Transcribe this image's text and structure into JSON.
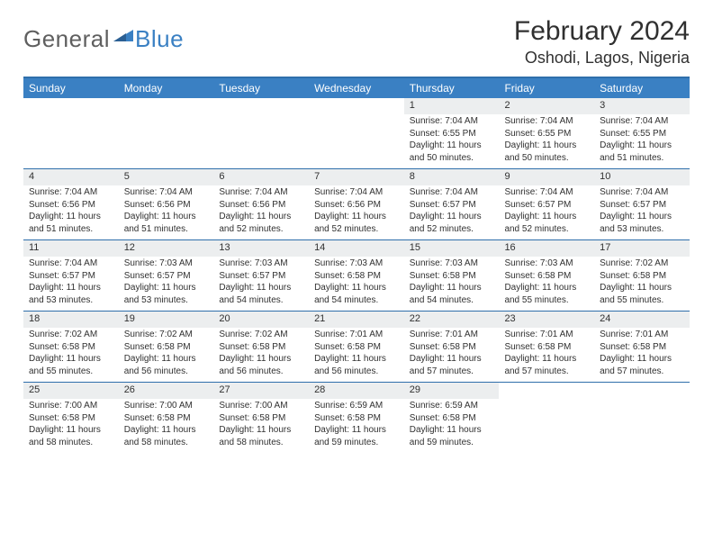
{
  "colors": {
    "header_bg": "#3a80c3",
    "header_text": "#ffffff",
    "border": "#2f6fab",
    "daynum_bg": "#eceeef",
    "text": "#303030",
    "logo_gray": "#5f5f5f",
    "logo_blue": "#3a80c3"
  },
  "logo": {
    "part1": "General",
    "part2": "Blue"
  },
  "title": "February 2024",
  "subtitle": "Oshodi, Lagos, Nigeria",
  "day_headers": [
    "Sunday",
    "Monday",
    "Tuesday",
    "Wednesday",
    "Thursday",
    "Friday",
    "Saturday"
  ],
  "weeks": [
    [
      {
        "n": "",
        "sr": "",
        "ss": "",
        "dl": ""
      },
      {
        "n": "",
        "sr": "",
        "ss": "",
        "dl": ""
      },
      {
        "n": "",
        "sr": "",
        "ss": "",
        "dl": ""
      },
      {
        "n": "",
        "sr": "",
        "ss": "",
        "dl": ""
      },
      {
        "n": "1",
        "sr": "Sunrise: 7:04 AM",
        "ss": "Sunset: 6:55 PM",
        "dl": "Daylight: 11 hours and 50 minutes."
      },
      {
        "n": "2",
        "sr": "Sunrise: 7:04 AM",
        "ss": "Sunset: 6:55 PM",
        "dl": "Daylight: 11 hours and 50 minutes."
      },
      {
        "n": "3",
        "sr": "Sunrise: 7:04 AM",
        "ss": "Sunset: 6:55 PM",
        "dl": "Daylight: 11 hours and 51 minutes."
      }
    ],
    [
      {
        "n": "4",
        "sr": "Sunrise: 7:04 AM",
        "ss": "Sunset: 6:56 PM",
        "dl": "Daylight: 11 hours and 51 minutes."
      },
      {
        "n": "5",
        "sr": "Sunrise: 7:04 AM",
        "ss": "Sunset: 6:56 PM",
        "dl": "Daylight: 11 hours and 51 minutes."
      },
      {
        "n": "6",
        "sr": "Sunrise: 7:04 AM",
        "ss": "Sunset: 6:56 PM",
        "dl": "Daylight: 11 hours and 52 minutes."
      },
      {
        "n": "7",
        "sr": "Sunrise: 7:04 AM",
        "ss": "Sunset: 6:56 PM",
        "dl": "Daylight: 11 hours and 52 minutes."
      },
      {
        "n": "8",
        "sr": "Sunrise: 7:04 AM",
        "ss": "Sunset: 6:57 PM",
        "dl": "Daylight: 11 hours and 52 minutes."
      },
      {
        "n": "9",
        "sr": "Sunrise: 7:04 AM",
        "ss": "Sunset: 6:57 PM",
        "dl": "Daylight: 11 hours and 52 minutes."
      },
      {
        "n": "10",
        "sr": "Sunrise: 7:04 AM",
        "ss": "Sunset: 6:57 PM",
        "dl": "Daylight: 11 hours and 53 minutes."
      }
    ],
    [
      {
        "n": "11",
        "sr": "Sunrise: 7:04 AM",
        "ss": "Sunset: 6:57 PM",
        "dl": "Daylight: 11 hours and 53 minutes."
      },
      {
        "n": "12",
        "sr": "Sunrise: 7:03 AM",
        "ss": "Sunset: 6:57 PM",
        "dl": "Daylight: 11 hours and 53 minutes."
      },
      {
        "n": "13",
        "sr": "Sunrise: 7:03 AM",
        "ss": "Sunset: 6:57 PM",
        "dl": "Daylight: 11 hours and 54 minutes."
      },
      {
        "n": "14",
        "sr": "Sunrise: 7:03 AM",
        "ss": "Sunset: 6:58 PM",
        "dl": "Daylight: 11 hours and 54 minutes."
      },
      {
        "n": "15",
        "sr": "Sunrise: 7:03 AM",
        "ss": "Sunset: 6:58 PM",
        "dl": "Daylight: 11 hours and 54 minutes."
      },
      {
        "n": "16",
        "sr": "Sunrise: 7:03 AM",
        "ss": "Sunset: 6:58 PM",
        "dl": "Daylight: 11 hours and 55 minutes."
      },
      {
        "n": "17",
        "sr": "Sunrise: 7:02 AM",
        "ss": "Sunset: 6:58 PM",
        "dl": "Daylight: 11 hours and 55 minutes."
      }
    ],
    [
      {
        "n": "18",
        "sr": "Sunrise: 7:02 AM",
        "ss": "Sunset: 6:58 PM",
        "dl": "Daylight: 11 hours and 55 minutes."
      },
      {
        "n": "19",
        "sr": "Sunrise: 7:02 AM",
        "ss": "Sunset: 6:58 PM",
        "dl": "Daylight: 11 hours and 56 minutes."
      },
      {
        "n": "20",
        "sr": "Sunrise: 7:02 AM",
        "ss": "Sunset: 6:58 PM",
        "dl": "Daylight: 11 hours and 56 minutes."
      },
      {
        "n": "21",
        "sr": "Sunrise: 7:01 AM",
        "ss": "Sunset: 6:58 PM",
        "dl": "Daylight: 11 hours and 56 minutes."
      },
      {
        "n": "22",
        "sr": "Sunrise: 7:01 AM",
        "ss": "Sunset: 6:58 PM",
        "dl": "Daylight: 11 hours and 57 minutes."
      },
      {
        "n": "23",
        "sr": "Sunrise: 7:01 AM",
        "ss": "Sunset: 6:58 PM",
        "dl": "Daylight: 11 hours and 57 minutes."
      },
      {
        "n": "24",
        "sr": "Sunrise: 7:01 AM",
        "ss": "Sunset: 6:58 PM",
        "dl": "Daylight: 11 hours and 57 minutes."
      }
    ],
    [
      {
        "n": "25",
        "sr": "Sunrise: 7:00 AM",
        "ss": "Sunset: 6:58 PM",
        "dl": "Daylight: 11 hours and 58 minutes."
      },
      {
        "n": "26",
        "sr": "Sunrise: 7:00 AM",
        "ss": "Sunset: 6:58 PM",
        "dl": "Daylight: 11 hours and 58 minutes."
      },
      {
        "n": "27",
        "sr": "Sunrise: 7:00 AM",
        "ss": "Sunset: 6:58 PM",
        "dl": "Daylight: 11 hours and 58 minutes."
      },
      {
        "n": "28",
        "sr": "Sunrise: 6:59 AM",
        "ss": "Sunset: 6:58 PM",
        "dl": "Daylight: 11 hours and 59 minutes."
      },
      {
        "n": "29",
        "sr": "Sunrise: 6:59 AM",
        "ss": "Sunset: 6:58 PM",
        "dl": "Daylight: 11 hours and 59 minutes."
      },
      {
        "n": "",
        "sr": "",
        "ss": "",
        "dl": ""
      },
      {
        "n": "",
        "sr": "",
        "ss": "",
        "dl": ""
      }
    ]
  ]
}
